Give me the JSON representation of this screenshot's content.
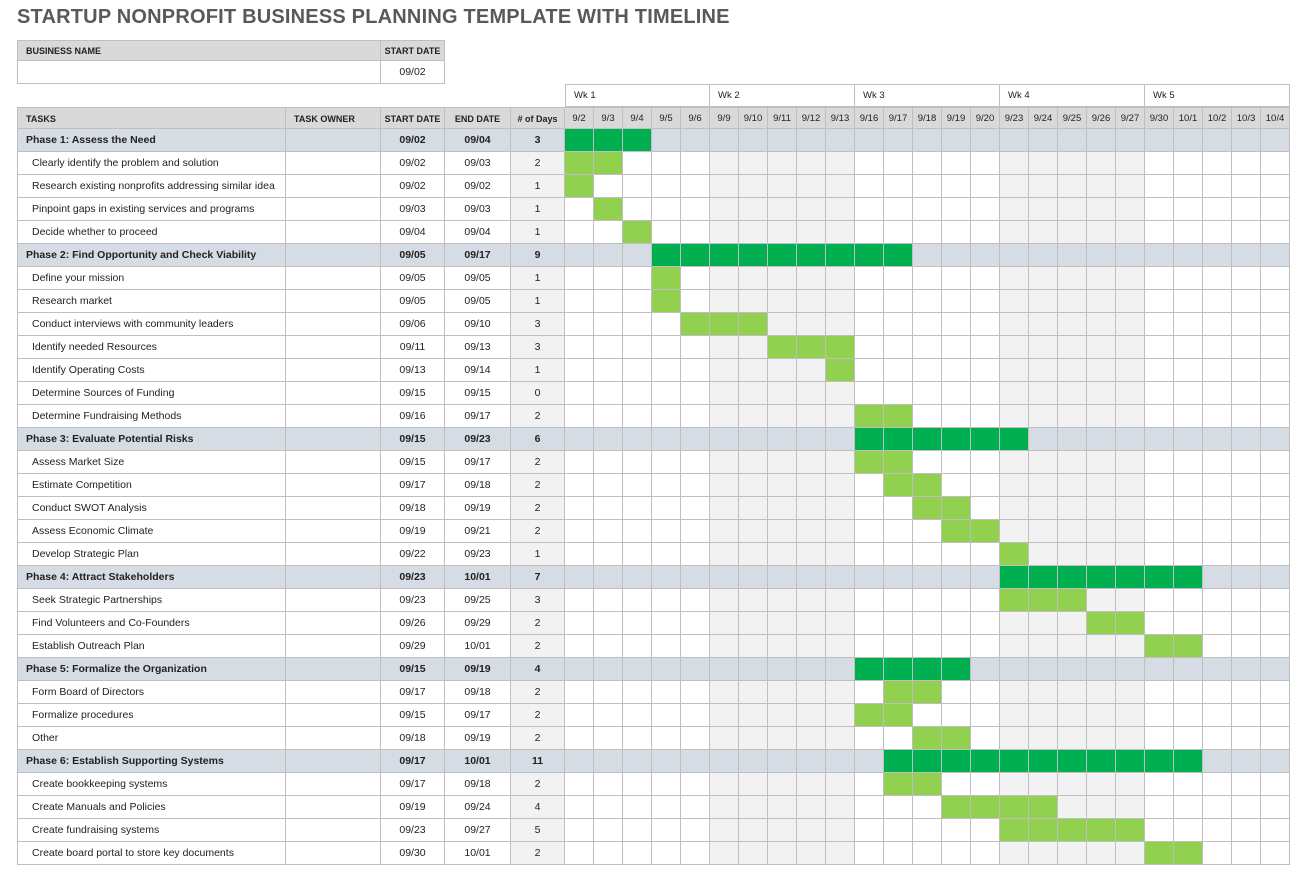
{
  "title": "STARTUP NONPROFIT BUSINESS PLANNING TEMPLATE WITH TIMELINE",
  "business_info": {
    "name_label": "BUSINESS NAME",
    "start_label": "START DATE",
    "start_date": "09/02"
  },
  "table": {
    "headers": [
      "TASKS",
      "TASK OWNER",
      "START DATE",
      "END DATE",
      "# of Days"
    ],
    "weeks": [
      "Wk 1",
      "Wk 2",
      "Wk 3",
      "Wk 4",
      "Wk 5"
    ],
    "days": [
      "9/2",
      "9/3",
      "9/4",
      "9/5",
      "9/6",
      "9/9",
      "9/10",
      "9/11",
      "9/12",
      "9/13",
      "9/16",
      "9/17",
      "9/18",
      "9/19",
      "9/20",
      "9/23",
      "9/24",
      "9/25",
      "9/26",
      "9/27",
      "9/30",
      "10/1",
      "10/2",
      "10/3",
      "10/4"
    ],
    "phases": [
      {
        "name": "Phase 1: Assess the Need",
        "start": "09/02",
        "end": "09/04",
        "days": 3,
        "tasks": [
          {
            "name": "Clearly identify the problem and solution",
            "start": "09/02",
            "end": "09/03",
            "days": 2
          },
          {
            "name": "Research existing nonprofits addressing similar idea",
            "start": "09/02",
            "end": "09/02",
            "days": 1
          },
          {
            "name": "Pinpoint gaps in existing services and programs",
            "start": "09/03",
            "end": "09/03",
            "days": 1
          },
          {
            "name": "Decide whether to proceed",
            "start": "09/04",
            "end": "09/04",
            "days": 1
          }
        ]
      },
      {
        "name": "Phase 2: Find Opportunity and Check Viability",
        "start": "09/05",
        "end": "09/17",
        "days": 9,
        "tasks": [
          {
            "name": "Define your mission",
            "start": "09/05",
            "end": "09/05",
            "days": 1
          },
          {
            "name": "Research market",
            "start": "09/05",
            "end": "09/05",
            "days": 1
          },
          {
            "name": "Conduct interviews with community leaders",
            "start": "09/06",
            "end": "09/10",
            "days": 3
          },
          {
            "name": "Identify needed Resources",
            "start": "09/11",
            "end": "09/13",
            "days": 3
          },
          {
            "name": "Identify Operating Costs",
            "start": "09/13",
            "end": "09/14",
            "days": 1
          },
          {
            "name": "Determine Sources of Funding",
            "start": "09/15",
            "end": "09/15",
            "days": 0
          },
          {
            "name": "Determine Fundraising Methods",
            "start": "09/16",
            "end": "09/17",
            "days": 2
          }
        ]
      },
      {
        "name": "Phase 3: Evaluate Potential Risks",
        "start": "09/15",
        "end": "09/23",
        "days": 6,
        "tasks": [
          {
            "name": "Assess Market Size",
            "start": "09/15",
            "end": "09/17",
            "days": 2
          },
          {
            "name": "Estimate Competition",
            "start": "09/17",
            "end": "09/18",
            "days": 2
          },
          {
            "name": "Conduct SWOT Analysis",
            "start": "09/18",
            "end": "09/19",
            "days": 2
          },
          {
            "name": "Assess Economic Climate",
            "start": "09/19",
            "end": "09/21",
            "days": 2
          },
          {
            "name": "Develop Strategic Plan",
            "start": "09/22",
            "end": "09/23",
            "days": 1
          }
        ]
      },
      {
        "name": "Phase 4: Attract Stakeholders",
        "start": "09/23",
        "end": "10/01",
        "days": 7,
        "tasks": [
          {
            "name": "Seek Strategic Partnerships",
            "start": "09/23",
            "end": "09/25",
            "days": 3
          },
          {
            "name": "Find Volunteers and Co-Founders",
            "start": "09/26",
            "end": "09/29",
            "days": 2
          },
          {
            "name": "Establish Outreach Plan",
            "start": "09/29",
            "end": "10/01",
            "days": 2
          }
        ]
      },
      {
        "name": "Phase 5: Formalize the Organization",
        "start": "09/15",
        "end": "09/19",
        "days": 4,
        "tasks": [
          {
            "name": "Form Board of Directors",
            "start": "09/17",
            "end": "09/18",
            "days": 2
          },
          {
            "name": "Formalize procedures",
            "start": "09/15",
            "end": "09/17",
            "days": 2
          },
          {
            "name": "Other",
            "start": "09/18",
            "end": "09/19",
            "days": 2
          }
        ]
      },
      {
        "name": "Phase 6: Establish Supporting Systems",
        "start": "09/17",
        "end": "10/01",
        "days": 11,
        "tasks": [
          {
            "name": "Create bookkeeping systems",
            "start": "09/17",
            "end": "09/18",
            "days": 2
          },
          {
            "name": "Create Manuals and Policies",
            "start": "09/19",
            "end": "09/24",
            "days": 4
          },
          {
            "name": "Create fundraising systems",
            "start": "09/23",
            "end": "09/27",
            "days": 5
          },
          {
            "name": "Create board portal to store key documents",
            "start": "09/30",
            "end": "10/01",
            "days": 2
          }
        ]
      }
    ]
  }
}
